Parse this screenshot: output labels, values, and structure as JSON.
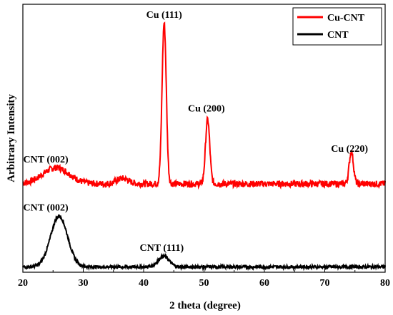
{
  "chart_data": {
    "type": "line",
    "xlabel": "2 theta (degree)",
    "ylabel": "Arbitrary Intensity",
    "xlim": [
      20,
      80
    ],
    "xticks": [
      20,
      30,
      40,
      50,
      60,
      70,
      80
    ],
    "ylim": [
      0,
      100
    ],
    "yticks_shown": false,
    "grid": false,
    "legend_position": "top-right",
    "colors": {
      "Cu-CNT": "#ff0000",
      "CNT": "#000000"
    },
    "series": [
      {
        "name": "Cu-CNT",
        "baseline": 33,
        "peaks": [
          {
            "x": 25.5,
            "height": 6,
            "width": 2.2
          },
          {
            "x": 36.5,
            "height": 2,
            "width": 1.0
          },
          {
            "x": 43.4,
            "height": 60,
            "width": 0.35
          },
          {
            "x": 50.6,
            "height": 24,
            "width": 0.35
          },
          {
            "x": 74.4,
            "height": 12,
            "width": 0.35
          }
        ],
        "noise": 1.2
      },
      {
        "name": "CNT",
        "baseline": 2,
        "peaks": [
          {
            "x": 26.0,
            "height": 19,
            "width": 1.4
          },
          {
            "x": 43.3,
            "height": 4,
            "width": 0.9
          }
        ],
        "noise": 0.6
      }
    ],
    "annotations": [
      {
        "text": "Cu (111)",
        "x": 43.4,
        "y": 95
      },
      {
        "text": "Cu (200)",
        "x": 50.4,
        "y": 60
      },
      {
        "text": "Cu (220)",
        "x": 74.1,
        "y": 45
      },
      {
        "text": "CNT (002)",
        "x": 23.8,
        "y": 41
      },
      {
        "text": "CNT (002)",
        "x": 23.8,
        "y": 23
      },
      {
        "text": "CNT (111)",
        "x": 43.0,
        "y": 8
      }
    ]
  }
}
